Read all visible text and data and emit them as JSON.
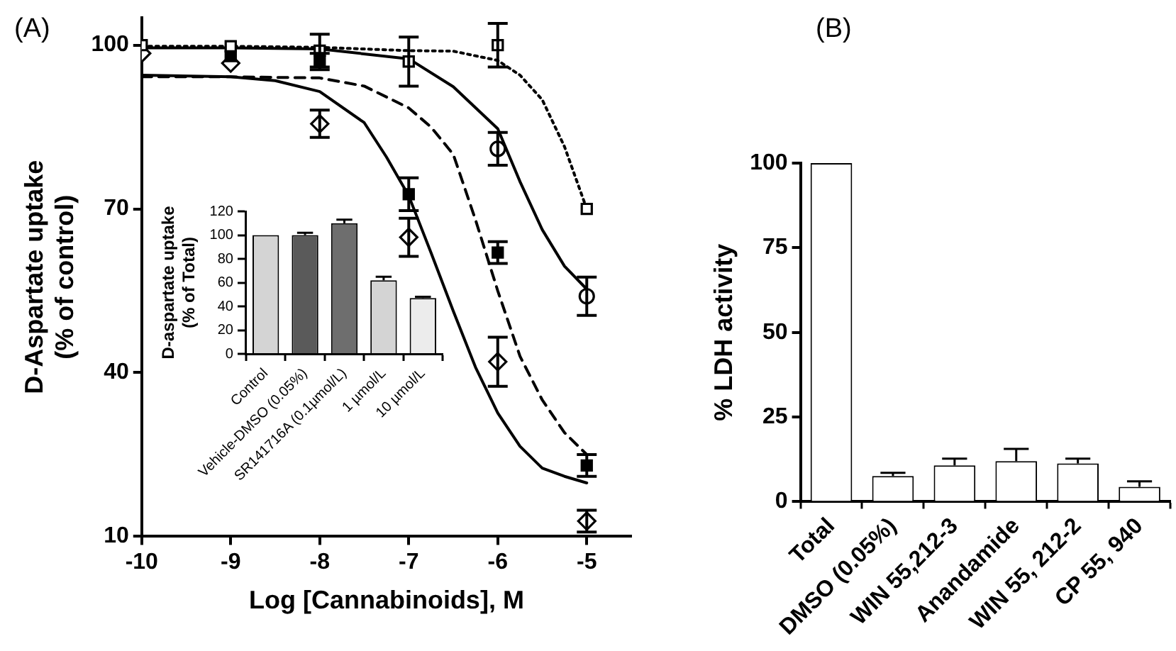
{
  "chart_data": [
    {
      "type": "scatter",
      "title": "(A)",
      "xlabel": "Log [Cannabinoids], M",
      "ylabel": "D-Aspartate uptake (% of control)",
      "xlim": [
        -10,
        -4.5
      ],
      "xticks": [
        -10,
        -9,
        -8,
        -7,
        -6,
        -5
      ],
      "ylim": [
        10,
        105
      ],
      "yticks": [
        10,
        40,
        70,
        100
      ],
      "grid": false,
      "legend": false,
      "series": [
        {
          "type": "line",
          "color": "#000000",
          "marker": "none",
          "line_style": "dotted",
          "x": [
            -10,
            -9,
            -8,
            -7,
            -6.5,
            -6,
            -5.75,
            -5.5,
            -5.25,
            -5
          ],
          "values": [
            99.8,
            99.8,
            99.6,
            99,
            98.9,
            97.2,
            94.5,
            90,
            81.4,
            70
          ]
        },
        {
          "type": "line",
          "color": "#000000",
          "marker": "none",
          "line_style": "solid",
          "x": [
            -10,
            -9,
            -8,
            -7,
            -6.5,
            -6,
            -5.75,
            -5.5,
            -5.25,
            -5
          ],
          "values": [
            99.5,
            99.5,
            99.3,
            97.5,
            92.4,
            84.7,
            75,
            66.2,
            59.5,
            55.3
          ]
        },
        {
          "type": "line",
          "color": "#000000",
          "marker": "none",
          "line_style": "dashed",
          "x": [
            -10,
            -9,
            -8,
            -7.5,
            -7,
            -6.75,
            -6.5,
            -6.25,
            -6,
            -5.75,
            -5.5,
            -5.25,
            -5
          ],
          "values": [
            94.2,
            94.2,
            94,
            92.5,
            88.5,
            85,
            80,
            68,
            55,
            43,
            35,
            29,
            25
          ]
        },
        {
          "type": "line",
          "color": "#000000",
          "marker": "none",
          "line_style": "solid",
          "x": [
            -10,
            -9,
            -8.5,
            -8,
            -7.5,
            -7.25,
            -7,
            -6.75,
            -6.5,
            -6.25,
            -6,
            -5.75,
            -5.5,
            -5.25,
            -5
          ],
          "values": [
            94.5,
            94.2,
            93.5,
            91.5,
            85.8,
            79.5,
            72.4,
            62,
            51.3,
            41,
            32.6,
            26.5,
            22.5,
            21,
            19.8
          ]
        },
        {
          "color": "#ffffff",
          "marker": "square",
          "x": [
            -10,
            -9,
            -8,
            -7,
            -6,
            -5
          ],
          "values": [
            100,
            99.8,
            99,
            97,
            100,
            70
          ],
          "errors": [
            null,
            null,
            3,
            4.5,
            4,
            null
          ]
        },
        {
          "color": "#ffffff",
          "marker": "circle",
          "x": [
            -6,
            -5
          ],
          "values": [
            81,
            54
          ],
          "errors": [
            3,
            3.5
          ]
        },
        {
          "color": "#000000",
          "marker": "square",
          "x": [
            -9,
            -8,
            -7,
            -6,
            -5
          ],
          "values": [
            98,
            97,
            72.7,
            62,
            23
          ],
          "errors": [
            null,
            1.5,
            3,
            2,
            2
          ]
        },
        {
          "color": "#ffffff",
          "marker": "diamond",
          "x": [
            -10,
            -9,
            -8,
            -7,
            -6,
            -5
          ],
          "values": [
            98.5,
            96.7,
            85.6,
            64.8,
            42,
            12.8
          ],
          "errors": [
            null,
            null,
            2.5,
            3.5,
            4.5,
            2
          ]
        }
      ]
    },
    {
      "type": "bar",
      "ylabel": "D-aspartate uptake (% of Total)",
      "categories": [
        "Control",
        "Vehicle-DMSO (0.05%)",
        "SR141716A (0.1µmol/L)",
        "1 µmol/L",
        "10 µmol/L"
      ],
      "values": [
        100,
        100,
        110,
        62,
        47
      ],
      "errors": [
        null,
        [
          100,
          102
        ],
        [
          110,
          113
        ],
        [
          62,
          65
        ],
        [
          47,
          48
        ]
      ],
      "colors": [
        "#d4d4d4",
        "#5a5a5a",
        "#6e6e6e",
        "#d4d4d4",
        "#ececec"
      ],
      "ylim": [
        0,
        120
      ],
      "yticks": [
        0,
        20,
        40,
        60,
        80,
        100,
        120
      ],
      "grid": false,
      "legend": false
    },
    {
      "type": "bar",
      "title": "(B)",
      "ylabel": "% LDH activity",
      "categories": [
        "Total",
        "DMSO (0.05%)",
        "WIN 55,212-3",
        "Anandamide",
        "WIN 55, 212-2",
        "CP 55, 940"
      ],
      "values": [
        100,
        7.6,
        10.7,
        12,
        11.3,
        4.4
      ],
      "errors": [
        null,
        [
          7.6,
          8.5
        ],
        [
          10.7,
          12.7
        ],
        [
          12,
          15.6
        ],
        [
          11.3,
          12.7
        ],
        [
          4.4,
          6
        ]
      ],
      "colors": [
        "#ffffff",
        "#ffffff",
        "#ffffff",
        "#ffffff",
        "#ffffff",
        "#ffffff"
      ],
      "ylim": [
        0,
        100
      ],
      "yticks": [
        0,
        25,
        50,
        75,
        100
      ],
      "grid": false,
      "legend": false
    }
  ]
}
